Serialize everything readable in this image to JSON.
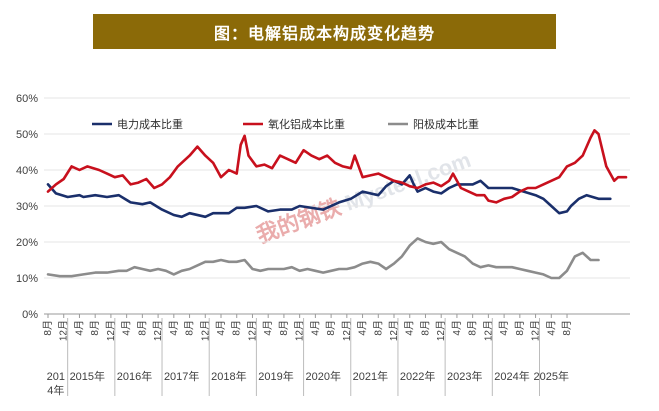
{
  "header": {
    "title": "图：电解铝成本构成变化趋势"
  },
  "watermark": {
    "cn": "我的钢铁",
    "en": "Mysteel.com"
  },
  "colors": {
    "power": "#1a2f6b",
    "alumina": "#c8101d",
    "anode": "#8c8c8c",
    "title_bg": "#8b6a08",
    "grid": "#e6e6e6"
  },
  "chart_data": {
    "type": "line",
    "title": "图：电解铝成本构成变化趋势",
    "xlabel": "",
    "ylabel": "",
    "ylim": [
      0,
      60
    ],
    "yticks": [
      "0%",
      "10%",
      "20%",
      "30%",
      "40%",
      "50%",
      "60%"
    ],
    "ytick_values": [
      0,
      10,
      20,
      30,
      40,
      50,
      60
    ],
    "x_start": "2014-08",
    "x_end": "2025-08",
    "month_ticks": [
      "8月",
      "12月",
      "4月",
      "8月",
      "12月",
      "4月",
      "8月",
      "12月",
      "4月",
      "8月",
      "12月",
      "4月",
      "8月",
      "12月",
      "4月",
      "8月",
      "12月",
      "4月",
      "8月",
      "12月",
      "4月",
      "8月",
      "12月",
      "4月",
      "8月",
      "12月",
      "4月",
      "8月",
      "12月",
      "4月",
      "8月",
      "12月",
      "4月",
      "8月"
    ],
    "month_tick_index": [
      0,
      4,
      8,
      12,
      16,
      20,
      24,
      28,
      32,
      36,
      40,
      44,
      48,
      52,
      56,
      60,
      64,
      68,
      72,
      76,
      80,
      84,
      88,
      92,
      96,
      100,
      104,
      108,
      112,
      116,
      120,
      124,
      128,
      132
    ],
    "year_labels": [
      {
        "label": "2014年",
        "index": 2
      },
      {
        "label": "2015年",
        "index": 10
      },
      {
        "label": "2016年",
        "index": 22
      },
      {
        "label": "2017年",
        "index": 34
      },
      {
        "label": "2018年",
        "index": 46
      },
      {
        "label": "2019年",
        "index": 58
      },
      {
        "label": "2020年",
        "index": 70
      },
      {
        "label": "2021年",
        "index": 82
      },
      {
        "label": "2022年",
        "index": 94
      },
      {
        "label": "2023年",
        "index": 106
      },
      {
        "label": "2024年",
        "index": 118
      },
      {
        "label": "2025年",
        "index": 128
      }
    ],
    "year_boundaries": [
      5,
      17,
      29,
      41,
      53,
      65,
      77,
      89,
      101,
      113,
      125
    ],
    "legend_position": "top-left",
    "series": [
      {
        "name": "电力成本比重",
        "color_key": "power",
        "anchors": [
          [
            0,
            36
          ],
          [
            2,
            33.5
          ],
          [
            5,
            32.5
          ],
          [
            8,
            33
          ],
          [
            9,
            32.5
          ],
          [
            12,
            33
          ],
          [
            15,
            32.5
          ],
          [
            18,
            33
          ],
          [
            21,
            31
          ],
          [
            24,
            30.5
          ],
          [
            26,
            31
          ],
          [
            29,
            29
          ],
          [
            32,
            27.5
          ],
          [
            34,
            27
          ],
          [
            36,
            28
          ],
          [
            40,
            27
          ],
          [
            42,
            28
          ],
          [
            46,
            28
          ],
          [
            48,
            29.5
          ],
          [
            50,
            29.5
          ],
          [
            53,
            30
          ],
          [
            56,
            28.5
          ],
          [
            59,
            29
          ],
          [
            62,
            29
          ],
          [
            64,
            30
          ],
          [
            70,
            29
          ],
          [
            74,
            31
          ],
          [
            77,
            32
          ],
          [
            80,
            34
          ],
          [
            84,
            33
          ],
          [
            86,
            35.5
          ],
          [
            88,
            37
          ],
          [
            90,
            36
          ],
          [
            92,
            38.5
          ],
          [
            93,
            36
          ],
          [
            94,
            34
          ],
          [
            96,
            35
          ],
          [
            98,
            34
          ],
          [
            100,
            33.5
          ],
          [
            102,
            35
          ],
          [
            104,
            36
          ],
          [
            108,
            36
          ],
          [
            110,
            37
          ],
          [
            112,
            35
          ],
          [
            118,
            35
          ],
          [
            121,
            34
          ],
          [
            124,
            33
          ],
          [
            126,
            32
          ],
          [
            128,
            30
          ],
          [
            130,
            28
          ],
          [
            132,
            28.5
          ],
          [
            133,
            30
          ],
          [
            135,
            32
          ],
          [
            137,
            33
          ],
          [
            140,
            32
          ],
          [
            143,
            32
          ]
        ]
      },
      {
        "name": "氧化铝成本比重",
        "color_key": "alumina",
        "anchors": [
          [
            0,
            34
          ],
          [
            2,
            36
          ],
          [
            4,
            37.5
          ],
          [
            6,
            41
          ],
          [
            8,
            40
          ],
          [
            10,
            41
          ],
          [
            13,
            40
          ],
          [
            15,
            39
          ],
          [
            17,
            38
          ],
          [
            19,
            38.5
          ],
          [
            21,
            36
          ],
          [
            23,
            36.5
          ],
          [
            25,
            37.5
          ],
          [
            27,
            35
          ],
          [
            29,
            36
          ],
          [
            31,
            38
          ],
          [
            33,
            41
          ],
          [
            36,
            44
          ],
          [
            38,
            46.5
          ],
          [
            40,
            44
          ],
          [
            42,
            42
          ],
          [
            44,
            38
          ],
          [
            46,
            40
          ],
          [
            48,
            39
          ],
          [
            49,
            47
          ],
          [
            50,
            49.5
          ],
          [
            51,
            44
          ],
          [
            53,
            41
          ],
          [
            55,
            41.5
          ],
          [
            57,
            40.5
          ],
          [
            59,
            44
          ],
          [
            61,
            43
          ],
          [
            63,
            42
          ],
          [
            65,
            45.5
          ],
          [
            67,
            44
          ],
          [
            69,
            43
          ],
          [
            71,
            44
          ],
          [
            73,
            42
          ],
          [
            75,
            41
          ],
          [
            77,
            40.5
          ],
          [
            78,
            44
          ],
          [
            80,
            38
          ],
          [
            82,
            38.5
          ],
          [
            84,
            39
          ],
          [
            86,
            38
          ],
          [
            88,
            37
          ],
          [
            90,
            36.5
          ],
          [
            92,
            35.5
          ],
          [
            94,
            35
          ],
          [
            96,
            36
          ],
          [
            98,
            36.5
          ],
          [
            100,
            35.5
          ],
          [
            102,
            37
          ],
          [
            103,
            39
          ],
          [
            105,
            35
          ],
          [
            107,
            34
          ],
          [
            109,
            33
          ],
          [
            111,
            33
          ],
          [
            112,
            31.5
          ],
          [
            114,
            31
          ],
          [
            116,
            32
          ],
          [
            118,
            32.5
          ],
          [
            120,
            34
          ],
          [
            122,
            35
          ],
          [
            124,
            35
          ],
          [
            126,
            36
          ],
          [
            128,
            37
          ],
          [
            130,
            38
          ],
          [
            132,
            41
          ],
          [
            134,
            42
          ],
          [
            136,
            44
          ],
          [
            138,
            49
          ],
          [
            139,
            51
          ],
          [
            140,
            50
          ],
          [
            142,
            41
          ],
          [
            144,
            37
          ],
          [
            145,
            38
          ],
          [
            147,
            38
          ]
        ]
      },
      {
        "name": "阳极成本比重",
        "color_key": "anode",
        "anchors": [
          [
            0,
            11
          ],
          [
            3,
            10.5
          ],
          [
            6,
            10.5
          ],
          [
            9,
            11
          ],
          [
            12,
            11.5
          ],
          [
            15,
            11.5
          ],
          [
            18,
            12
          ],
          [
            20,
            12
          ],
          [
            22,
            13
          ],
          [
            24,
            12.5
          ],
          [
            26,
            12
          ],
          [
            28,
            12.5
          ],
          [
            30,
            12
          ],
          [
            32,
            11
          ],
          [
            34,
            12
          ],
          [
            36,
            12.5
          ],
          [
            38,
            13.5
          ],
          [
            40,
            14.5
          ],
          [
            42,
            14.5
          ],
          [
            44,
            15
          ],
          [
            46,
            14.5
          ],
          [
            48,
            14.5
          ],
          [
            50,
            15
          ],
          [
            52,
            12.5
          ],
          [
            54,
            12
          ],
          [
            56,
            12.5
          ],
          [
            58,
            12.5
          ],
          [
            60,
            12.5
          ],
          [
            62,
            13
          ],
          [
            64,
            12
          ],
          [
            66,
            12.5
          ],
          [
            68,
            12
          ],
          [
            70,
            11.5
          ],
          [
            72,
            12
          ],
          [
            74,
            12.5
          ],
          [
            76,
            12.5
          ],
          [
            78,
            13
          ],
          [
            80,
            14
          ],
          [
            82,
            14.5
          ],
          [
            84,
            14
          ],
          [
            86,
            12.5
          ],
          [
            88,
            14
          ],
          [
            90,
            16
          ],
          [
            92,
            19
          ],
          [
            94,
            21
          ],
          [
            96,
            20
          ],
          [
            98,
            19.5
          ],
          [
            100,
            20
          ],
          [
            102,
            18
          ],
          [
            104,
            17
          ],
          [
            106,
            16
          ],
          [
            108,
            14
          ],
          [
            110,
            13
          ],
          [
            112,
            13.5
          ],
          [
            114,
            13
          ],
          [
            116,
            13
          ],
          [
            118,
            13
          ],
          [
            120,
            12.5
          ],
          [
            122,
            12
          ],
          [
            124,
            11.5
          ],
          [
            126,
            11
          ],
          [
            128,
            10
          ],
          [
            130,
            10
          ],
          [
            132,
            12
          ],
          [
            134,
            16
          ],
          [
            136,
            17
          ],
          [
            138,
            15
          ],
          [
            140,
            15
          ]
        ]
      }
    ]
  }
}
